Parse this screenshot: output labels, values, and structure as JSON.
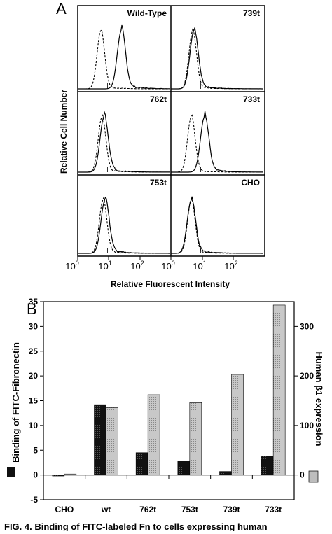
{
  "panel_a": {
    "letter": "A",
    "ylabel": "Relative Cell Number",
    "xlabel": "Relative Fluorescent Intensity",
    "x_ticks": [
      {
        "base": "10",
        "exp": "0"
      },
      {
        "base": "10",
        "exp": "1"
      },
      {
        "base": "10",
        "exp": "2"
      }
    ],
    "panels": [
      "Wild-Type",
      "739t",
      "762t",
      "733t",
      "753t",
      "CHO"
    ]
  },
  "panel_b": {
    "letter": "B",
    "ylabel_left": "Binding of FITC-Fibronectin",
    "ylabel_right": "Human β1 expression",
    "caption": "FIG. 4. Binding of FITC-labeled Fn to cells expressing human"
  },
  "chart_data": [
    {
      "type": "line",
      "panel": "A",
      "xlabel": "Relative Fluorescent Intensity",
      "ylabel": "Relative Cell Number",
      "x_scale": "log",
      "xlim": [
        1,
        1000
      ],
      "panels": [
        {
          "title": "Wild-Type",
          "dashed_peak": 5.5,
          "solid_peak": 25
        },
        {
          "title": "739t",
          "dashed_peak": 5.0,
          "solid_peak": 5.5
        },
        {
          "title": "762t",
          "dashed_peak": 6.0,
          "solid_peak": 7.0
        },
        {
          "title": "733t",
          "dashed_peak": 4.5,
          "solid_peak": 12
        },
        {
          "title": "753t",
          "dashed_peak": 6.5,
          "solid_peak": 7.5
        },
        {
          "title": "CHO",
          "dashed_peak": 4.5,
          "solid_peak": 4.5
        }
      ]
    },
    {
      "type": "bar",
      "panel": "B",
      "categories": [
        "CHO",
        "wt",
        "762t",
        "753t",
        "739t",
        "733t"
      ],
      "ylim": [
        -5,
        35
      ],
      "y_ticks": [
        -5,
        0,
        5,
        10,
        15,
        20,
        25,
        30,
        35
      ],
      "ylim_right": [
        -50,
        350
      ],
      "y_ticks_right": [
        0,
        100,
        200,
        300
      ],
      "series": [
        {
          "values": [
            -0.2,
            14.2,
            4.5,
            2.8,
            0.7,
            3.8
          ],
          "color": "#111111",
          "axis": "left"
        },
        {
          "values": [
            2,
            136,
            162,
            146,
            203,
            343
          ],
          "color": "#bdbdbd",
          "axis": "right"
        }
      ]
    }
  ]
}
